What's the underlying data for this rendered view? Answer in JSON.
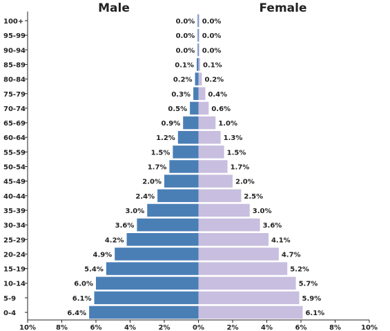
{
  "chart_data": {
    "type": "bar",
    "orientation": "horizontal",
    "sides": {
      "left": "Male",
      "right": "Female"
    },
    "categories": [
      "0-4",
      "5-9",
      "10-14",
      "15-19",
      "20-24",
      "25-29",
      "30-34",
      "35-39",
      "40-44",
      "45-49",
      "50-54",
      "55-59",
      "60-64",
      "65-69",
      "70-74",
      "75-79",
      "80-84",
      "85-89",
      "90-94",
      "95-99",
      "100+"
    ],
    "series": [
      {
        "name": "Male",
        "values": [
          6.4,
          6.1,
          6.0,
          5.4,
          4.9,
          4.2,
          3.6,
          3.0,
          2.4,
          2.0,
          1.7,
          1.5,
          1.2,
          0.9,
          0.5,
          0.3,
          0.2,
          0.1,
          0.0,
          0.0,
          0.0
        ],
        "labels": [
          "6.4%",
          "6.1%",
          "6.0%",
          "5.4%",
          "4.9%",
          "4.2%",
          "3.6%",
          "3.0%",
          "2.4%",
          "2.0%",
          "1.7%",
          "1.5%",
          "1.2%",
          "0.9%",
          "0.5%",
          "0.3%",
          "0.2%",
          "0.1%",
          "0.0%",
          "0.0%",
          "0.0%"
        ]
      },
      {
        "name": "Female",
        "values": [
          6.1,
          5.9,
          5.7,
          5.2,
          4.7,
          4.1,
          3.6,
          3.0,
          2.5,
          2.0,
          1.7,
          1.5,
          1.3,
          1.0,
          0.6,
          0.4,
          0.2,
          0.1,
          0.0,
          0.0,
          0.0
        ],
        "labels": [
          "6.1%",
          "5.9%",
          "5.7%",
          "5.2%",
          "4.7%",
          "4.1%",
          "3.6%",
          "3.0%",
          "2.5%",
          "2.0%",
          "1.7%",
          "1.5%",
          "1.3%",
          "1.0%",
          "0.6%",
          "0.4%",
          "0.2%",
          "0.1%",
          "0.0%",
          "0.0%",
          "0.0%"
        ]
      }
    ],
    "xlim": [
      -10,
      10
    ],
    "x_ticks": [
      -10,
      -8,
      -6,
      -4,
      -2,
      0,
      2,
      4,
      6,
      8,
      10
    ],
    "x_tick_labels": [
      "10%",
      "8%",
      "6%",
      "4%",
      "2%",
      "0%",
      "2%",
      "4%",
      "6%",
      "8%",
      "10%"
    ],
    "grid": false,
    "legend": "none",
    "colors": {
      "male": "#4a7fb6",
      "female": "#c8bedf",
      "axis": "#222222"
    }
  }
}
